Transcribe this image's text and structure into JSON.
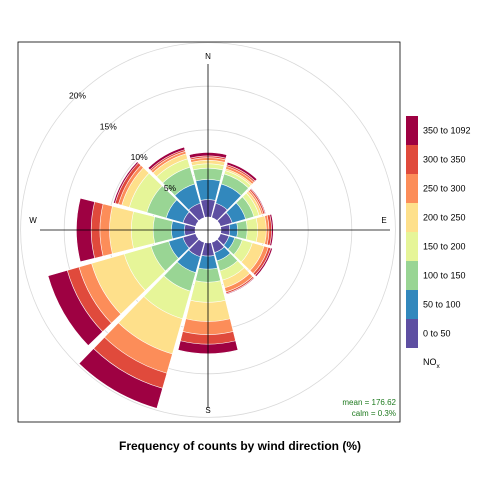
{
  "chart_data": {
    "type": "windrose",
    "title": "Frequency of counts by wind direction (%)",
    "directions": [
      "N",
      "E",
      "S",
      "W"
    ],
    "radial_ticks": [
      "5%",
      "10%",
      "15%",
      "20%"
    ],
    "radial_values": [
      5,
      10,
      15,
      20
    ],
    "rmax": 22.5,
    "sectors": [
      0,
      30,
      60,
      90,
      120,
      150,
      180,
      210,
      240,
      270,
      300,
      330
    ],
    "bins": [
      "0 to 50",
      "50 to 100",
      "100 to 150",
      "150 to 200",
      "200 to 250",
      "250 to 300",
      "300 to 350",
      "350 to 1092"
    ],
    "colors": [
      "#5E4FA2",
      "#3288BD",
      "#99D594",
      "#E6F598",
      "#FEE08B",
      "#FC8D59",
      "#E04A3C",
      "#9E0142"
    ],
    "cumulative": [
      [
        2.0,
        4.3,
        5.6,
        6.1,
        6.5,
        6.8,
        7.0,
        7.4
      ],
      [
        1.7,
        4.0,
        5.2,
        5.6,
        5.8,
        6.1,
        6.3,
        6.6
      ],
      [
        1.4,
        3.0,
        4.0,
        4.6,
        4.9,
        5.1,
        5.3,
        5.4
      ],
      [
        1.0,
        1.9,
        3.0,
        4.2,
        5.2,
        5.5,
        5.8,
        6.0
      ],
      [
        1.0,
        1.7,
        2.6,
        3.8,
        5.2,
        5.7,
        6.0,
        6.2
      ],
      [
        1.2,
        2.2,
        3.4,
        4.5,
        5.4,
        5.9,
        6.1,
        6.2
      ],
      [
        1.5,
        3.0,
        4.5,
        6.8,
        9.0,
        10.5,
        11.6,
        12.7
      ],
      [
        1.7,
        3.6,
        5.8,
        9.1,
        13.3,
        15.6,
        17.4,
        19.8
      ],
      [
        1.5,
        3.2,
        5.3,
        8.5,
        12.4,
        13.9,
        15.3,
        17.6
      ],
      [
        1.2,
        2.7,
        4.8,
        7.3,
        9.8,
        10.9,
        11.9,
        13.6
      ],
      [
        1.5,
        3.5,
        5.8,
        7.9,
        8.8,
        9.2,
        9.6,
        9.8
      ],
      [
        1.7,
        4.0,
        6.0,
        7.0,
        7.6,
        7.9,
        8.1,
        8.4
      ]
    ],
    "legend_title": "NO",
    "legend_subscript": "x",
    "mean_label": "mean = 176.62",
    "calm_label": "calm = 0.3%"
  }
}
